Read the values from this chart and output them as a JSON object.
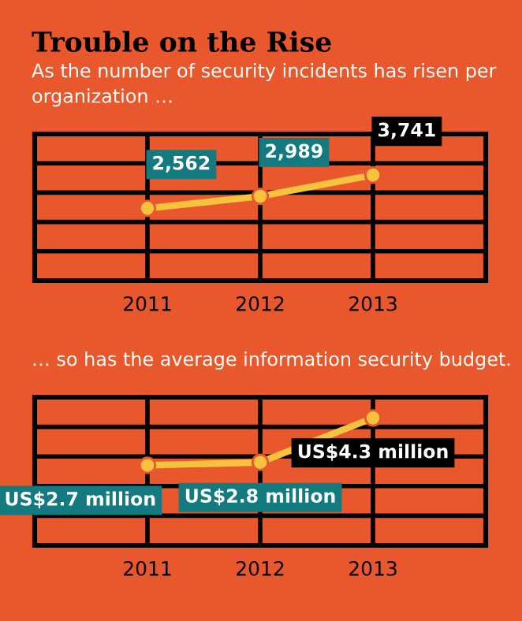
{
  "chart_data": [
    {
      "type": "line",
      "title": "Trouble on the Rise",
      "subtitle": "As the number of security incidents has risen per organization …",
      "categories": [
        "2011",
        "2012",
        "2013"
      ],
      "series": [
        {
          "color": "#f7c23e",
          "values": [
            2562,
            2989,
            3741
          ],
          "value_labels": [
            "2,562",
            "2,989",
            "3,741"
          ]
        }
      ],
      "ylim": [
        0,
        5200
      ],
      "grid": true,
      "marker": "circle",
      "tick_labels": "x"
    },
    {
      "type": "line",
      "subtitle": "… so has the average information security budget.",
      "categories": [
        "2011",
        "2012",
        "2013"
      ],
      "series": [
        {
          "color": "#f7c23e",
          "values": [
            2700000,
            2800000,
            4300000
          ],
          "value_labels": [
            "US$2.7 million",
            "US$2.8 million",
            "US$4.3 million"
          ]
        }
      ],
      "ylim": [
        0,
        5000000
      ],
      "grid": true,
      "marker": "circle",
      "tick_labels": "x"
    }
  ]
}
